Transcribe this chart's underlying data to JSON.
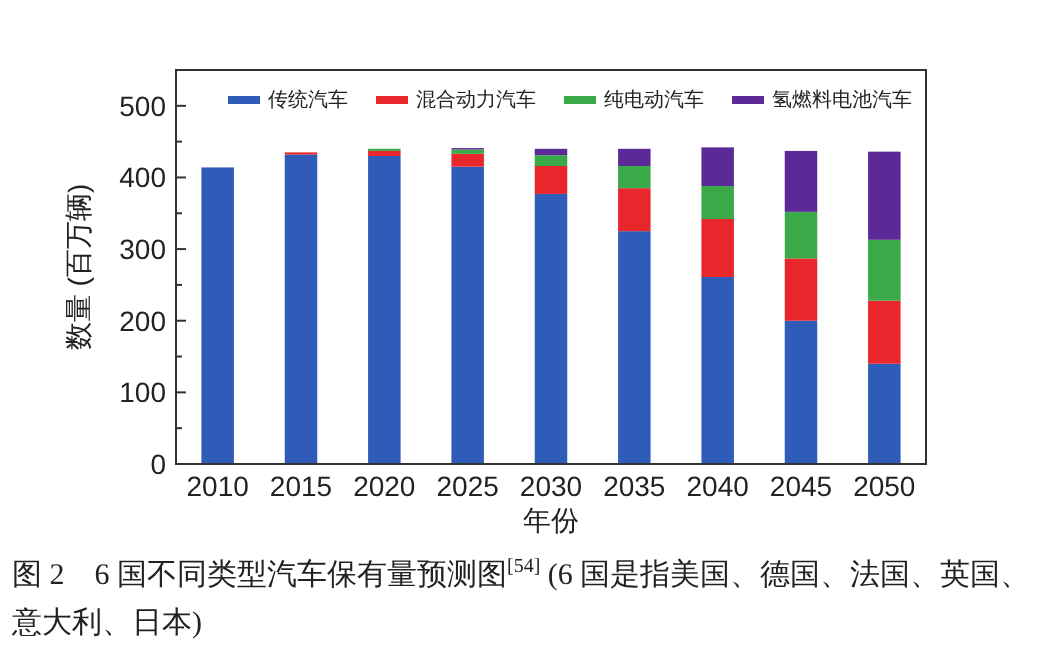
{
  "chart_data": {
    "type": "bar",
    "stacked": true,
    "categories": [
      "2010",
      "2015",
      "2020",
      "2025",
      "2030",
      "2035",
      "2040",
      "2045",
      "2050"
    ],
    "series": [
      {
        "name": "传统汽车",
        "color": "#2f5cb8",
        "values": [
          414,
          432,
          430,
          415,
          377,
          325,
          261,
          200,
          140
        ]
      },
      {
        "name": "混合动力汽车",
        "color": "#e8262b",
        "values": [
          0,
          3,
          7,
          18,
          39,
          60,
          81,
          87,
          88
        ]
      },
      {
        "name": "纯电动汽车",
        "color": "#3aaa48",
        "values": [
          0,
          0,
          3,
          6,
          15,
          31,
          46,
          65,
          85
        ]
      },
      {
        "name": "氢燃料电池汽车",
        "color": "#5b2a96",
        "values": [
          0,
          0,
          0,
          2,
          9,
          24,
          54,
          85,
          123
        ]
      }
    ],
    "xlabel": "年份",
    "ylabel": "数量 (百万辆)",
    "ylim": [
      0,
      550
    ],
    "yticks": [
      0,
      {
        "value": 50,
        "label": null
      },
      100,
      {
        "value": 150,
        "label": null
      },
      200,
      {
        "value": 250,
        "label": null
      },
      300,
      {
        "value": 350,
        "label": null
      },
      400,
      {
        "value": 450,
        "label": null
      },
      500,
      {
        "value": 550,
        "label": null
      }
    ],
    "legend": "top",
    "annotations": [
      "图 2　6 国不同类型汽车保有量预测图$^{[54]}$ (6 国是指美国、德国、法国、英国、意大利、日本)"
    ]
  }
}
